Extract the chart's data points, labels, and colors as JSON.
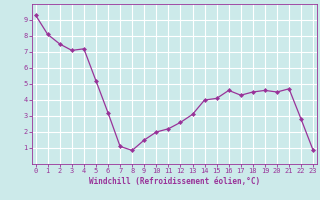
{
  "x": [
    0,
    1,
    2,
    3,
    4,
    5,
    6,
    7,
    8,
    9,
    10,
    11,
    12,
    13,
    14,
    15,
    16,
    17,
    18,
    19,
    20,
    21,
    22,
    23
  ],
  "y": [
    9.3,
    8.1,
    7.5,
    7.1,
    7.2,
    5.2,
    3.2,
    1.1,
    0.85,
    1.5,
    2.0,
    2.2,
    2.6,
    3.1,
    4.0,
    4.1,
    4.6,
    4.3,
    4.5,
    4.6,
    4.5,
    4.7,
    2.8,
    0.85
  ],
  "line_color": "#993399",
  "marker": "D",
  "markersize": 2.0,
  "linewidth": 0.9,
  "bg_color": "#cceaea",
  "grid_color": "#ffffff",
  "xlabel": "Windchill (Refroidissement éolien,°C)",
  "xlabel_color": "#993399",
  "tick_color": "#993399",
  "ylim": [
    0,
    10
  ],
  "xlim": [
    -0.3,
    23.3
  ],
  "yticks": [
    1,
    2,
    3,
    4,
    5,
    6,
    7,
    8,
    9
  ],
  "xticks": [
    0,
    1,
    2,
    3,
    4,
    5,
    6,
    7,
    8,
    9,
    10,
    11,
    12,
    13,
    14,
    15,
    16,
    17,
    18,
    19,
    20,
    21,
    22,
    23
  ],
  "font_family": "monospace",
  "tick_fontsize": 5.0,
  "xlabel_fontsize": 5.5
}
